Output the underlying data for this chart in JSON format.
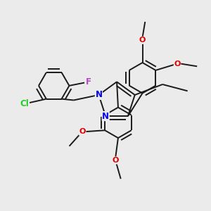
{
  "background_color": "#ebebeb",
  "bond_color": "#1a1a1a",
  "bond_width": 1.4,
  "atoms": {
    "Cl": {
      "color": "#22cc22",
      "fontsize": 8.5
    },
    "F": {
      "color": "#bb44cc",
      "fontsize": 8.5
    },
    "N": {
      "color": "#0000ee",
      "fontsize": 8.5
    },
    "O": {
      "color": "#dd0000",
      "fontsize": 8.0
    }
  },
  "figsize": [
    3.0,
    3.0
  ],
  "dpi": 100,
  "scale": 1.0
}
